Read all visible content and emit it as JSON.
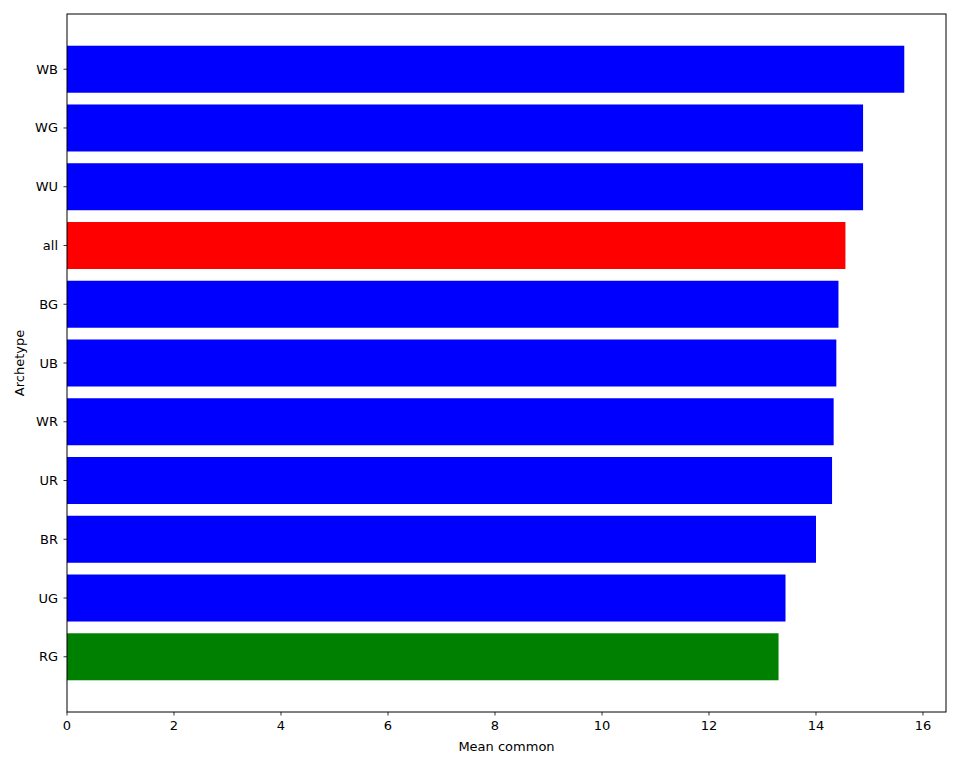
{
  "chart_data": {
    "type": "bar",
    "orientation": "horizontal",
    "xlabel": "Mean common",
    "ylabel": "Archetype",
    "categories": [
      "WB",
      "WG",
      "WU",
      "all",
      "BG",
      "UB",
      "WR",
      "UR",
      "BR",
      "UG",
      "RG"
    ],
    "values": [
      15.65,
      14.88,
      14.88,
      14.55,
      14.42,
      14.38,
      14.33,
      14.3,
      14.0,
      13.43,
      13.3
    ],
    "colors": [
      "#0000ff",
      "#0000ff",
      "#0000ff",
      "#ff0000",
      "#0000ff",
      "#0000ff",
      "#0000ff",
      "#0000ff",
      "#0000ff",
      "#0000ff",
      "#008000"
    ],
    "xlim": [
      0,
      16.43
    ],
    "xticks": [
      0,
      2,
      4,
      6,
      8,
      10,
      12,
      14,
      16
    ],
    "grid": false
  }
}
